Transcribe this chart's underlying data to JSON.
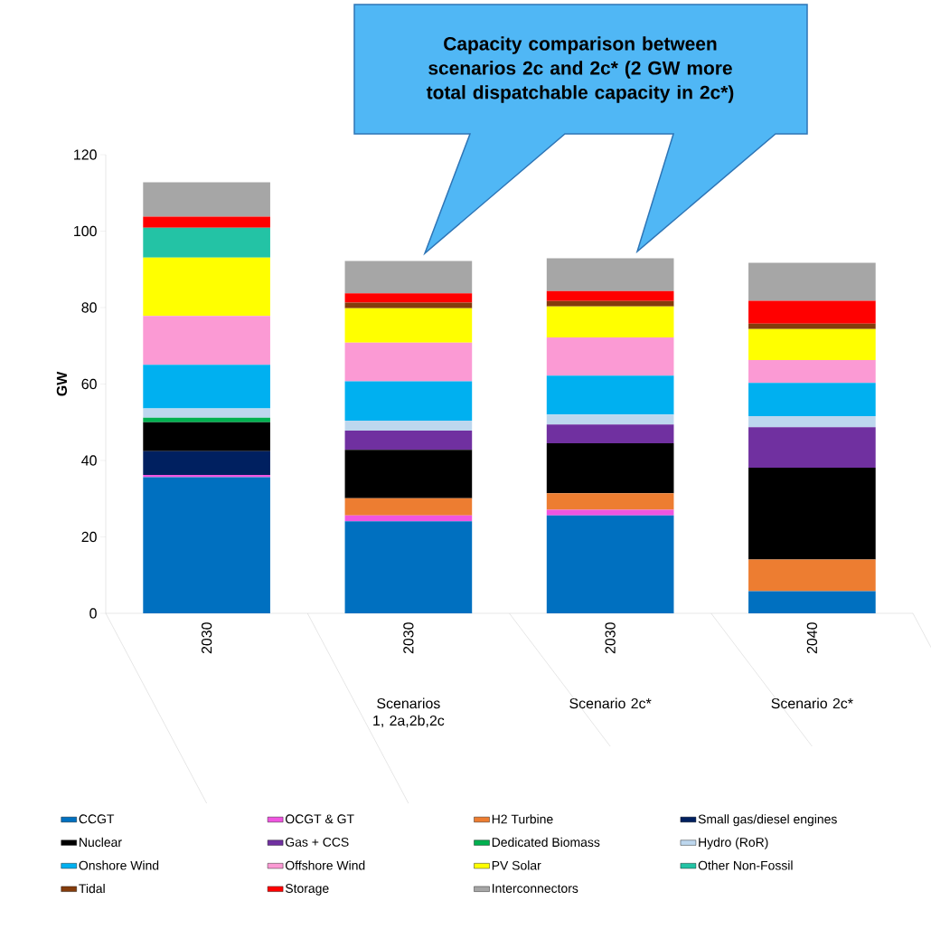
{
  "chart_data": {
    "type": "bar",
    "stacked": true,
    "ylabel": "GW",
    "categories": [
      "2030",
      "2030",
      "2030",
      "2040"
    ],
    "annotations": [
      "Capacity comparison between scenarios 2c and 2c* (2 GW more total dispatchable capacity in 2c*)",
      "Scenarios 1, 2a,2b,2c",
      "Scenario 2c*",
      "Scenario 2c*"
    ],
    "ylim": [
      0,
      120
    ],
    "yticks": [
      0,
      20,
      40,
      60,
      80,
      100,
      120
    ],
    "legend": "bottom",
    "grid": false,
    "series": [
      {
        "name": "CCGT",
        "color": "#0070c0",
        "values": [
          35.6,
          24.1,
          25.6,
          5.8
        ]
      },
      {
        "name": "OCGT & GT",
        "color": "#f055e0",
        "values": [
          0.6,
          1.5,
          1.5,
          0
        ]
      },
      {
        "name": "H2 Turbine",
        "color": "#ed7d31",
        "values": [
          0,
          4.5,
          4.3,
          8.3
        ]
      },
      {
        "name": "Small gas/diesel engines",
        "color": "#002060",
        "values": [
          6.2,
          0,
          0,
          0
        ]
      },
      {
        "name": "Nuclear",
        "color": "#000000",
        "values": [
          7.6,
          12.7,
          13.1,
          24.0
        ]
      },
      {
        "name": "Gas + CCS",
        "color": "#7030a0",
        "values": [
          0,
          5.0,
          4.9,
          10.6
        ]
      },
      {
        "name": "Dedicated Biomass",
        "color": "#00b050",
        "values": [
          1.2,
          0,
          0,
          0
        ]
      },
      {
        "name": "Hydro (RoR)",
        "color": "#bdd7ee",
        "values": [
          2.4,
          2.6,
          2.6,
          2.9
        ]
      },
      {
        "name": "Onshore Wind",
        "color": "#00b0f0",
        "values": [
          11.4,
          10.3,
          10.2,
          8.7
        ]
      },
      {
        "name": "Offshore Wind",
        "color": "#fb9ad4",
        "values": [
          12.8,
          10.1,
          10.0,
          6.0
        ]
      },
      {
        "name": "PV Solar",
        "color": "#ffff00",
        "values": [
          15.3,
          9.0,
          8.1,
          8.1
        ]
      },
      {
        "name": "Other Non-Fossil",
        "color": "#23c3a5",
        "values": [
          7.8,
          0,
          0,
          0
        ]
      },
      {
        "name": "Tidal",
        "color": "#843c0c",
        "values": [
          0,
          1.5,
          1.4,
          1.4
        ]
      },
      {
        "name": "Storage",
        "color": "#ff0000",
        "values": [
          2.9,
          2.4,
          2.6,
          6.0
        ]
      },
      {
        "name": "Interconnectors",
        "color": "#a6a6a6",
        "values": [
          9.0,
          8.5,
          8.6,
          9.9
        ]
      }
    ]
  }
}
